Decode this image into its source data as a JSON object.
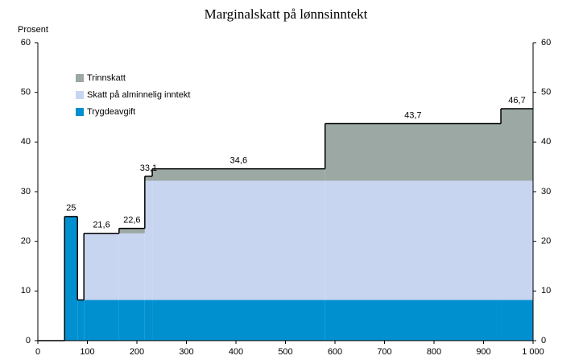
{
  "chart_data": {
    "type": "stacked-step-area",
    "title": "Marginalskatt på lønnsinntekt",
    "y_label": "Prosent",
    "x": [
      0,
      54,
      80,
      93,
      164,
      216,
      231,
      580,
      935
    ],
    "series": [
      {
        "name": "Trygdeavgift",
        "color": "#0090d0",
        "values": [
          0,
          25,
          8.2,
          8.2,
          8.2,
          8.2,
          8.2,
          8.2,
          8.2
        ]
      },
      {
        "name": "Skatt på alminnelig inntekt",
        "color": "#c8d5f0",
        "values": [
          0,
          0,
          0,
          13.4,
          13.4,
          24,
          24,
          24,
          24
        ]
      },
      {
        "name": "Trinnskatt",
        "color": "#9ba8a3",
        "values": [
          0,
          0,
          0,
          0,
          1,
          0.9,
          2.4,
          11.5,
          14.5
        ]
      }
    ],
    "total": {
      "color": "#000000",
      "values": [
        0,
        25,
        8.2,
        21.6,
        22.6,
        33.1,
        34.6,
        43.7,
        46.7
      ],
      "value_labels": [
        null,
        "25",
        null,
        "21,6",
        "22,6",
        "33,1",
        "34,6",
        "43,7",
        "46,7"
      ]
    },
    "xlim": [
      0,
      1000
    ],
    "xticks": [
      0,
      100,
      200,
      300,
      400,
      500,
      600,
      700,
      800,
      900,
      {
        "value": 1000,
        "label": "1 000"
      }
    ],
    "ylim": [
      0,
      60
    ],
    "yticks": [
      0,
      10,
      20,
      30,
      40,
      50,
      60
    ],
    "y2lim": [
      0,
      60
    ],
    "y2ticks": [
      0,
      10,
      20,
      30,
      40,
      50,
      60
    ],
    "legend": "upper-left"
  }
}
